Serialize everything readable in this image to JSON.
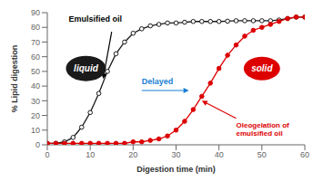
{
  "chart_data": {
    "type": "line",
    "xlabel": "Digestion time (min)",
    "ylabel": "% Lipid digestion",
    "x": [
      0,
      2,
      4,
      6,
      8,
      10,
      12,
      14,
      16,
      18,
      20,
      22,
      24,
      26,
      28,
      30,
      32,
      34,
      36,
      38,
      40,
      42,
      44,
      46,
      48,
      50,
      52,
      54,
      56,
      58,
      60
    ],
    "series": [
      {
        "color": "#1a1a1a",
        "marker": "open_circle",
        "values": [
          1,
          1,
          2,
          5,
          12,
          22,
          35,
          50,
          62,
          70,
          76,
          79,
          81,
          82,
          83,
          83,
          83.5,
          84,
          84,
          84,
          84,
          84.2,
          84.5,
          84.5,
          84.5,
          84.5,
          84.5,
          85,
          86,
          87,
          87
        ]
      },
      {
        "color": "#dd0000",
        "marker": "circle",
        "values": [
          1,
          1,
          1,
          1,
          1,
          1,
          1,
          1,
          1,
          1,
          2,
          2,
          3,
          4,
          6,
          10,
          16,
          24,
          33,
          42,
          52,
          61,
          68,
          74,
          78,
          80,
          82,
          84,
          86,
          87,
          87
        ]
      }
    ],
    "xlim": [
      0,
      60
    ],
    "ylim": [
      0,
      90
    ],
    "xticks": [
      0,
      10,
      20,
      30,
      40,
      50,
      60
    ],
    "yticks": [
      0,
      10,
      20,
      30,
      40,
      50,
      60,
      70,
      80,
      90
    ],
    "grid": false,
    "annotations": [
      {
        "text": "Emulsified oil",
        "color": "black"
      },
      {
        "text": "liquid",
        "color": "#1a1a1a"
      },
      {
        "text": "solid",
        "color": "#dd0000"
      },
      {
        "text": "Delayed",
        "color": "#1a7fd4"
      },
      {
        "text": "Oleogelation of\nemulsified oil",
        "color": "#dd0000"
      }
    ]
  }
}
